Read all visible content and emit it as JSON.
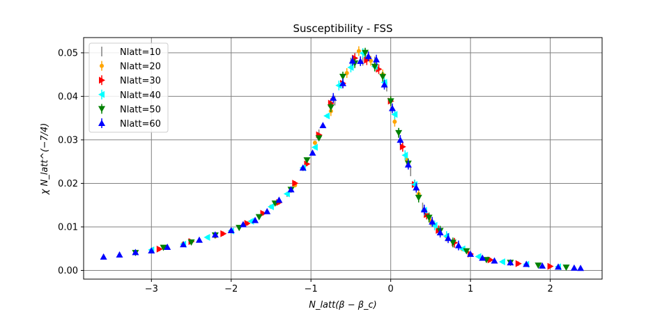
{
  "chart_data": {
    "type": "scatter",
    "title": "Susceptibility - FSS",
    "xlabel": "N_latt(β − β_c)",
    "ylabel": "χ N_latt^(−7/4)",
    "xlim": [
      -3.85,
      2.65
    ],
    "ylim": [
      -0.002,
      0.0535
    ],
    "xticks": [
      -3,
      -2,
      -1,
      0,
      1,
      2
    ],
    "yticks": [
      0.0,
      0.01,
      0.02,
      0.03,
      0.04,
      0.05
    ],
    "xtick_labels": [
      "−3",
      "−2",
      "−1",
      "0",
      "1",
      "2"
    ],
    "ytick_labels": [
      "0.00",
      "0.01",
      "0.02",
      "0.03",
      "0.04",
      "0.05"
    ],
    "grid": true,
    "legend_position": "top-left",
    "curve": {
      "x": [
        -3.6,
        -3.3,
        -3.0,
        -2.8,
        -2.6,
        -2.4,
        -2.2,
        -2.0,
        -1.8,
        -1.6,
        -1.4,
        -1.2,
        -1.0,
        -0.8,
        -0.6,
        -0.5,
        -0.4,
        -0.3,
        -0.2,
        -0.1,
        0.0,
        0.1,
        0.2,
        0.3,
        0.4,
        0.5,
        0.6,
        0.8,
        1.0,
        1.2,
        1.5,
        1.8,
        2.1,
        2.4
      ],
      "y": [
        0.0032,
        0.0038,
        0.0046,
        0.0053,
        0.0061,
        0.007,
        0.008,
        0.0093,
        0.0108,
        0.0128,
        0.0158,
        0.0198,
        0.0268,
        0.0355,
        0.0435,
        0.0472,
        0.0492,
        0.0495,
        0.048,
        0.0445,
        0.038,
        0.032,
        0.0255,
        0.0195,
        0.0148,
        0.0115,
        0.0092,
        0.0062,
        0.0038,
        0.0025,
        0.0018,
        0.0012,
        0.0008,
        0.0005
      ]
    },
    "series": [
      {
        "name": "Nlatt=10",
        "color": "#808080",
        "marker": "none",
        "x": [
          -1.3,
          -1.1,
          -0.9,
          -0.7,
          -0.5,
          -0.35,
          -0.2,
          -0.05,
          0.1,
          0.25,
          0.4
        ]
      },
      {
        "name": "Nlatt=20",
        "color": "#ffa500",
        "marker": "circle",
        "x": [
          -2.6,
          -2.2,
          -1.8,
          -1.5,
          -1.2,
          -0.95,
          -0.75,
          -0.55,
          -0.4,
          -0.25,
          -0.1,
          0.05,
          0.2,
          0.35,
          0.5,
          0.7,
          0.9,
          1.2,
          1.5
        ]
      },
      {
        "name": "Nlatt=30",
        "color": "#ff0000",
        "marker": "triangle-right",
        "x": [
          -2.9,
          -2.5,
          -2.1,
          -1.8,
          -1.6,
          -1.4,
          -1.2,
          -1.05,
          -0.9,
          -0.75,
          -0.6,
          -0.45,
          -0.3,
          -0.15,
          0.0,
          0.15,
          0.3,
          0.45,
          0.6,
          0.8,
          1.0,
          1.25,
          1.6,
          2.0
        ]
      },
      {
        "name": "Nlatt=40",
        "color": "#00ffff",
        "marker": "triangle-left",
        "x": [
          -3.0,
          -2.6,
          -2.3,
          -2.0,
          -1.75,
          -1.5,
          -1.3,
          -1.1,
          -0.95,
          -0.8,
          -0.65,
          -0.5,
          -0.35,
          -0.2,
          -0.08,
          0.05,
          0.18,
          0.3,
          0.42,
          0.55,
          0.7,
          0.9,
          1.1,
          1.4,
          1.7,
          2.1
        ]
      },
      {
        "name": "Nlatt=50",
        "color": "#008000",
        "marker": "triangle-down",
        "x": [
          -3.2,
          -2.85,
          -2.5,
          -2.2,
          -1.9,
          -1.65,
          -1.45,
          -1.25,
          -1.05,
          -0.9,
          -0.75,
          -0.6,
          -0.45,
          -0.32,
          -0.2,
          -0.1,
          0.0,
          0.1,
          0.22,
          0.35,
          0.48,
          0.62,
          0.78,
          0.95,
          1.2,
          1.5,
          1.85,
          2.2
        ]
      },
      {
        "name": "Nlatt=60",
        "color": "#0000ff",
        "marker": "triangle-up",
        "x": [
          -3.6,
          -3.4,
          -3.2,
          -3.0,
          -2.8,
          -2.6,
          -2.4,
          -2.2,
          -2.0,
          -1.85,
          -1.7,
          -1.55,
          -1.4,
          -1.25,
          -1.1,
          -0.98,
          -0.85,
          -0.72,
          -0.6,
          -0.48,
          -0.38,
          -0.28,
          -0.18,
          -0.08,
          0.02,
          0.12,
          0.22,
          0.32,
          0.42,
          0.52,
          0.62,
          0.72,
          0.85,
          1.0,
          1.15,
          1.3,
          1.5,
          1.7,
          1.9,
          2.1,
          2.3,
          2.38
        ]
      }
    ]
  }
}
